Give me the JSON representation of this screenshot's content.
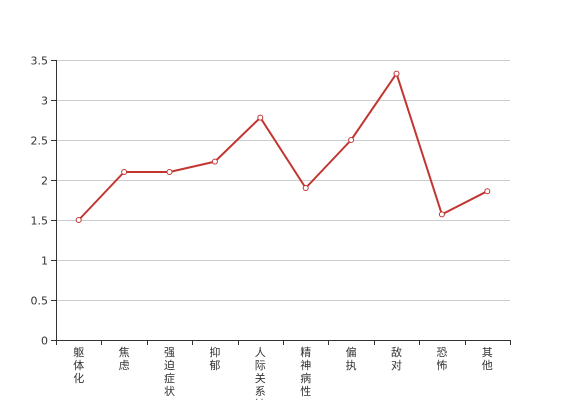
{
  "chart_data": {
    "type": "line",
    "categories": [
      "躯体化",
      "焦虑",
      "强迫症状",
      "抑郁",
      "人际关系敏感",
      "精神病性",
      "偏执",
      "敌对",
      "恐怖",
      "其他"
    ],
    "series": [
      {
        "name": "",
        "values": [
          1.5,
          2.1,
          2.1,
          2.23,
          2.78,
          1.9,
          2.5,
          3.33,
          1.57,
          1.86
        ]
      }
    ],
    "ylim": [
      0,
      3.5
    ],
    "yticks": [
      "0",
      "0.5",
      "1",
      "1.5",
      "2",
      "2.5",
      "3",
      "3.5"
    ],
    "grid": true,
    "line_color": "#c23531",
    "title": "",
    "xlabel": "",
    "ylabel": ""
  }
}
